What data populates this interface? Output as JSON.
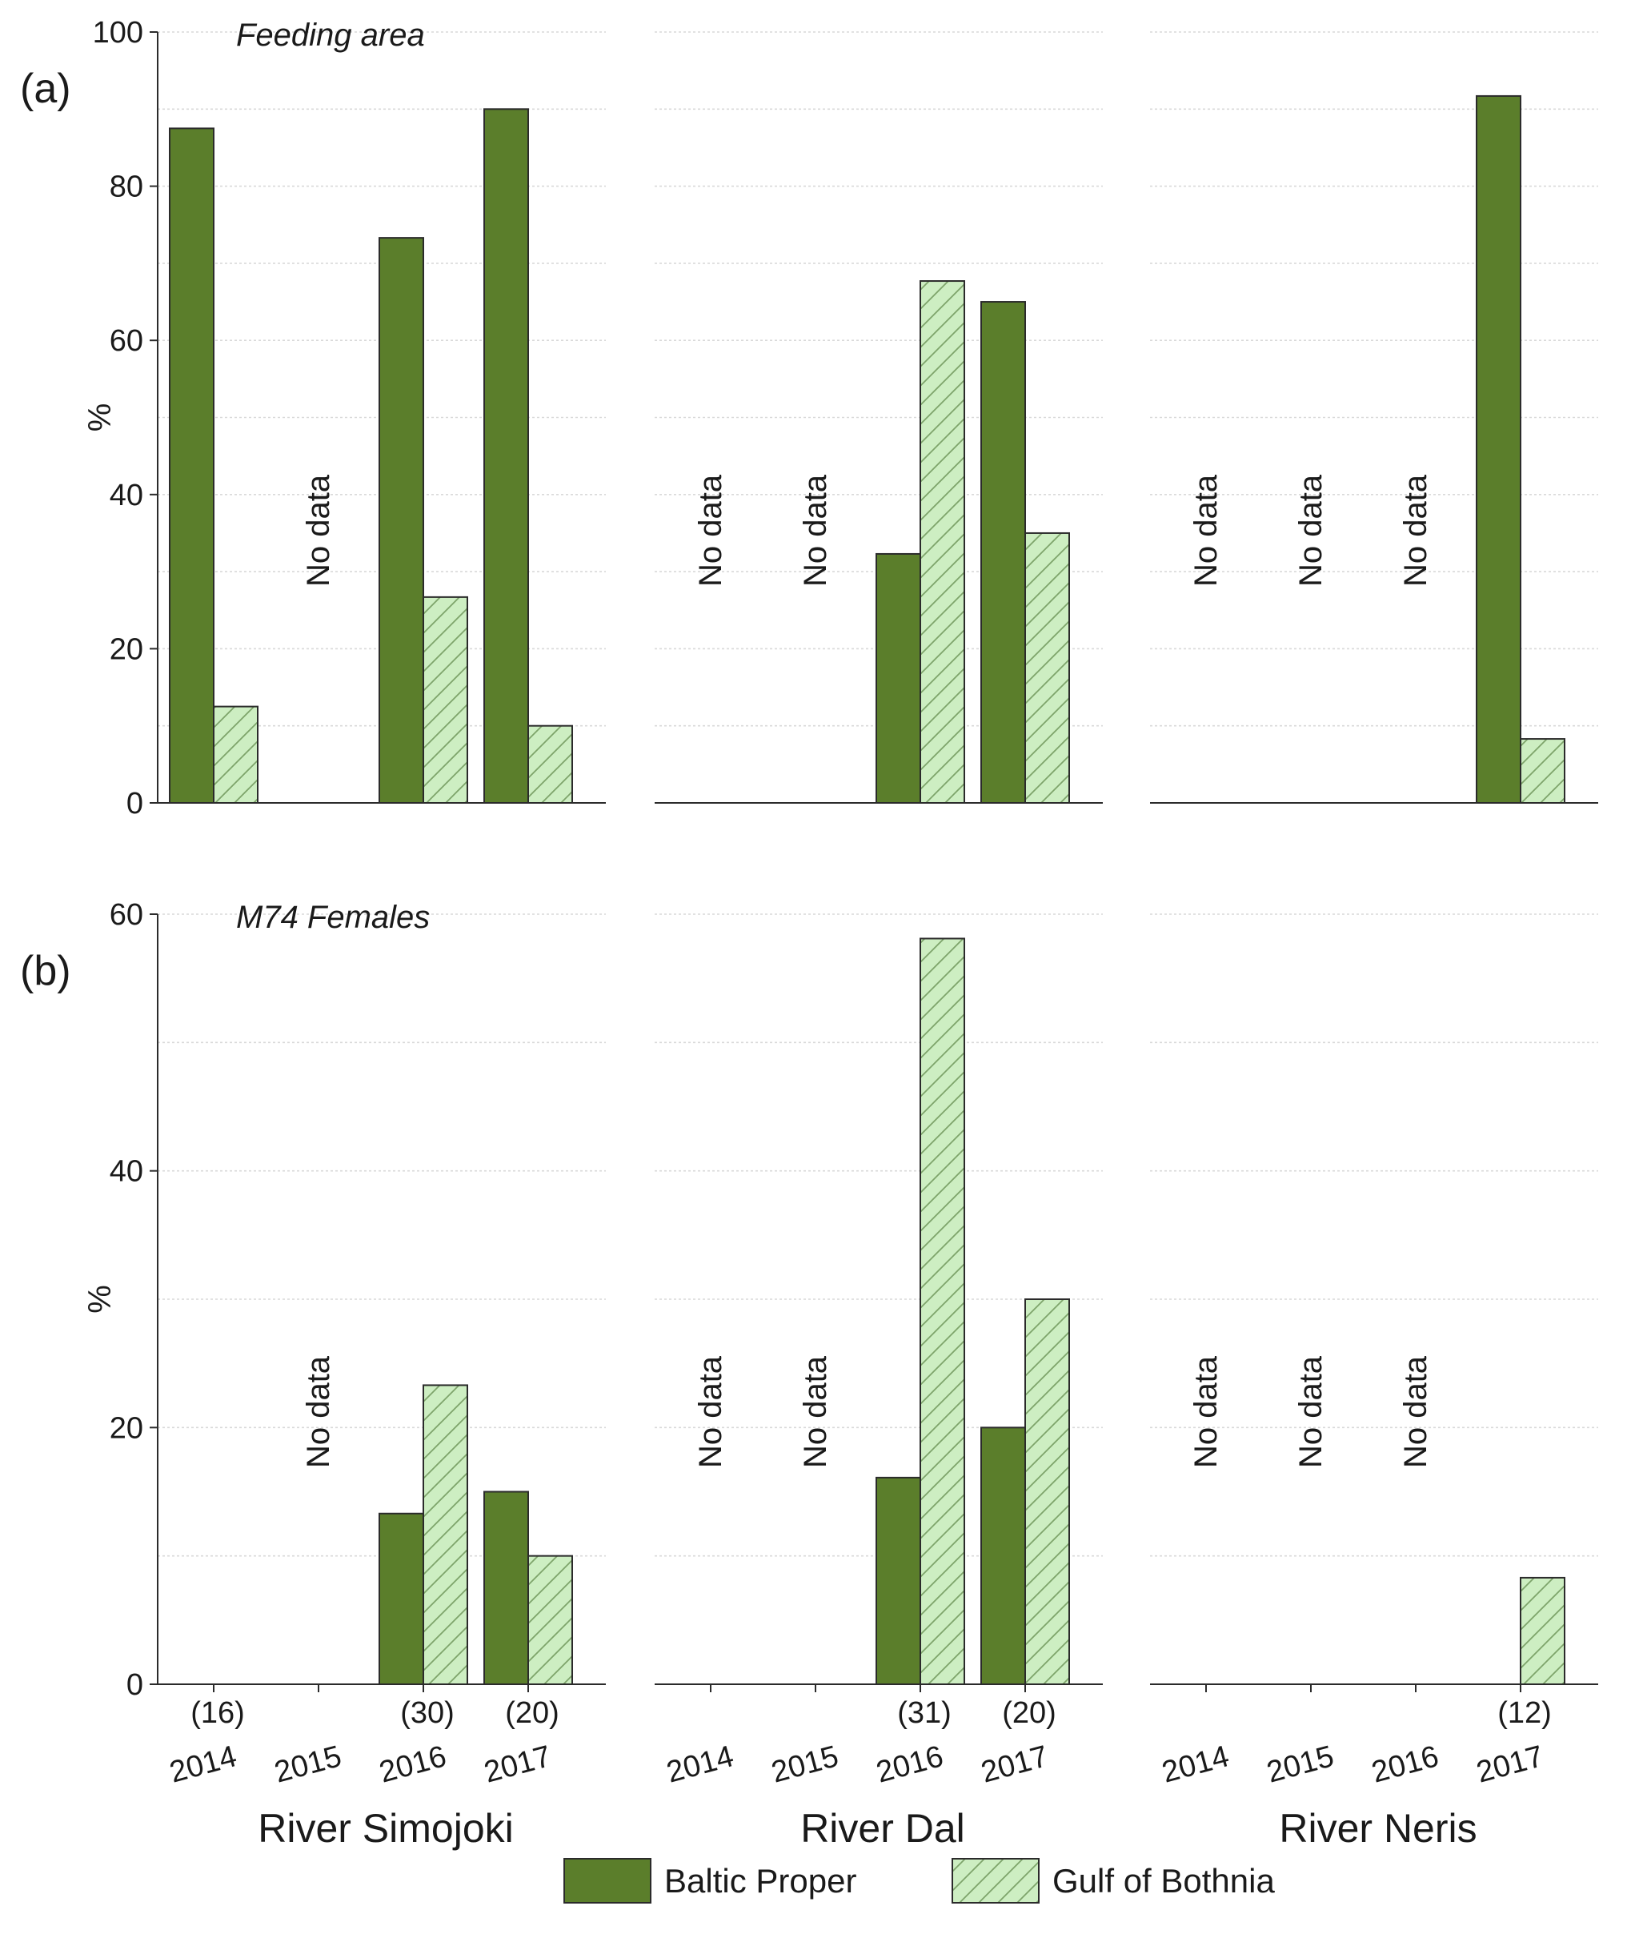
{
  "colors": {
    "baltic_fill": "#5b7e2b",
    "gulf_fill": "#cdeec2",
    "hatch": "#7da46a",
    "grid": "#d9d9d9",
    "axis": "#2b2b2b"
  },
  "chart_data": [
    {
      "type": "bar",
      "panel_label": "(a)",
      "title": "Feeding area",
      "ylabel": "%",
      "ylim": [
        0,
        100
      ],
      "yticks": [
        0,
        20,
        40,
        60,
        80,
        100
      ],
      "no_data_text": "No data",
      "rivers": [
        {
          "name": "River Simojoki",
          "years": [
            "2014",
            "2015",
            "2016",
            "2017"
          ],
          "series": [
            {
              "name": "Baltic Proper",
              "values": [
                87.5,
                null,
                73.3,
                90
              ]
            },
            {
              "name": "Gulf of Bothnia",
              "values": [
                12.5,
                null,
                26.7,
                10
              ]
            }
          ]
        },
        {
          "name": "River Dal",
          "years": [
            "2014",
            "2015",
            "2016",
            "2017"
          ],
          "series": [
            {
              "name": "Baltic Proper",
              "values": [
                null,
                null,
                32.3,
                65
              ]
            },
            {
              "name": "Gulf of Bothnia",
              "values": [
                null,
                null,
                67.7,
                35
              ]
            }
          ]
        },
        {
          "name": "River Neris",
          "years": [
            "2014",
            "2015",
            "2016",
            "2017"
          ],
          "series": [
            {
              "name": "Baltic Proper",
              "values": [
                null,
                null,
                null,
                91.7
              ]
            },
            {
              "name": "Gulf of Bothnia",
              "values": [
                null,
                null,
                null,
                8.3
              ]
            }
          ]
        }
      ]
    },
    {
      "type": "bar",
      "panel_label": "(b)",
      "title": "M74 Females",
      "ylabel": "%",
      "ylim": [
        0,
        60
      ],
      "yticks": [
        0,
        20,
        40,
        60
      ],
      "no_data_text": "No data",
      "rivers": [
        {
          "name": "River Simojoki",
          "years": [
            "2014",
            "2015",
            "2016",
            "2017"
          ],
          "sample_sizes": [
            "(16)",
            null,
            "(30)",
            "(20)"
          ],
          "series": [
            {
              "name": "Baltic Proper",
              "values": [
                0,
                null,
                13.3,
                15
              ]
            },
            {
              "name": "Gulf of Bothnia",
              "values": [
                0,
                null,
                23.3,
                10
              ]
            }
          ]
        },
        {
          "name": "River Dal",
          "years": [
            "2014",
            "2015",
            "2016",
            "2017"
          ],
          "sample_sizes": [
            null,
            null,
            "(31)",
            "(20)"
          ],
          "series": [
            {
              "name": "Baltic Proper",
              "values": [
                null,
                null,
                16.1,
                20
              ]
            },
            {
              "name": "Gulf of Bothnia",
              "values": [
                null,
                null,
                58.1,
                30
              ]
            }
          ]
        },
        {
          "name": "River Neris",
          "years": [
            "2014",
            "2015",
            "2016",
            "2017"
          ],
          "sample_sizes": [
            null,
            null,
            null,
            "(12)"
          ],
          "series": [
            {
              "name": "Baltic Proper",
              "values": [
                null,
                null,
                null,
                0
              ]
            },
            {
              "name": "Gulf of Bothnia",
              "values": [
                null,
                null,
                null,
                8.3
              ]
            }
          ]
        }
      ]
    }
  ],
  "legend": {
    "items": [
      {
        "name": "Baltic Proper",
        "style": "solid"
      },
      {
        "name": "Gulf of Bothnia",
        "style": "hatched"
      }
    ]
  }
}
